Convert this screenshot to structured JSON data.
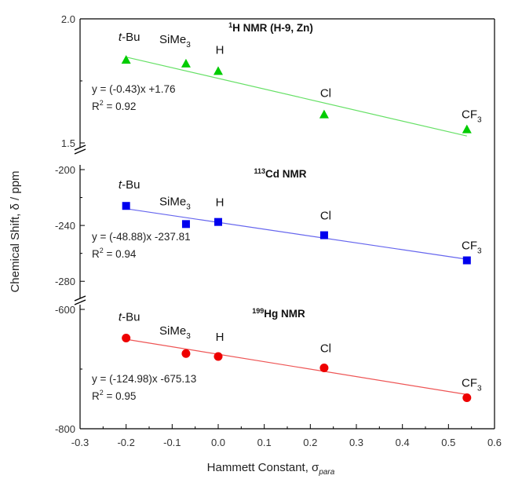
{
  "chart_data": {
    "type": "scatter",
    "xlabel": "Hammett Constant, σ",
    "xlabel_sub": "para",
    "ylabel": "Chemical Shift, δ / ppm",
    "xlim": [
      -0.3,
      0.6
    ],
    "x_ticks": [
      "-0.3",
      "-0.2",
      "-0.1",
      "0.0",
      "0.1",
      "0.2",
      "0.3",
      "0.4",
      "0.5",
      "0.6"
    ],
    "x_tick_values": [
      -0.3,
      -0.2,
      -0.1,
      0.0,
      0.1,
      0.2,
      0.3,
      0.4,
      0.5,
      0.6
    ],
    "x": [
      -0.2,
      -0.07,
      0.0,
      0.23,
      0.54
    ],
    "point_labels": [
      {
        "main": "t-Bu",
        "sub": ""
      },
      {
        "main": "SiMe",
        "sub": "3"
      },
      {
        "main": "H",
        "sub": ""
      },
      {
        "main": "Cl",
        "sub": ""
      },
      {
        "main": "CF",
        "sub": "3"
      }
    ],
    "panels": [
      {
        "title_sup": "1",
        "title": "H NMR (H-9, Zn)",
        "ylim": [
          1.5,
          2.0
        ],
        "y_ticks": [
          "2.0",
          "1.5"
        ],
        "y_tick_values": [
          2.0,
          1.5
        ],
        "y": [
          1.835,
          1.82,
          1.79,
          1.615,
          1.555
        ],
        "marker": "triangle",
        "color": "#00cc00",
        "line_color": "#66e066",
        "fit": {
          "slope": -0.43,
          "intercept": 1.76
        },
        "equation": "y = (-0.43)x +1.76",
        "r2_label": "R",
        "r2_sup": "2",
        "r2_value": " = 0.92"
      },
      {
        "title_sup": "113",
        "title": "Cd NMR",
        "ylim": [
          -290,
          -200
        ],
        "y_ticks": [
          "-200",
          "-240",
          "-280"
        ],
        "y_tick_values": [
          -200,
          -240,
          -280
        ],
        "y": [
          -226,
          -239,
          -237.5,
          -247,
          -265
        ],
        "marker": "square",
        "color": "#0000ee",
        "line_color": "#6666ee",
        "fit": {
          "slope": -48.88,
          "intercept": -237.81
        },
        "equation": "y = (-48.88)x -237.81",
        "r2_label": "R",
        "r2_sup": "2",
        "r2_value": " = 0.94"
      },
      {
        "title_sup": "199",
        "title": "Hg NMR",
        "ylim": [
          -800,
          -600
        ],
        "y_ticks": [
          "-600",
          "-800"
        ],
        "y_tick_values": [
          -600,
          -800
        ],
        "y": [
          -648,
          -674,
          -679,
          -698,
          -748
        ],
        "marker": "circle",
        "color": "#ee0000",
        "line_color": "#ee5555",
        "fit": {
          "slope": -124.98,
          "intercept": -675.13
        },
        "equation": "y = (-124.98)x -675.13",
        "r2_label": "R",
        "r2_sup": "2",
        "r2_value": " = 0.95"
      }
    ]
  }
}
